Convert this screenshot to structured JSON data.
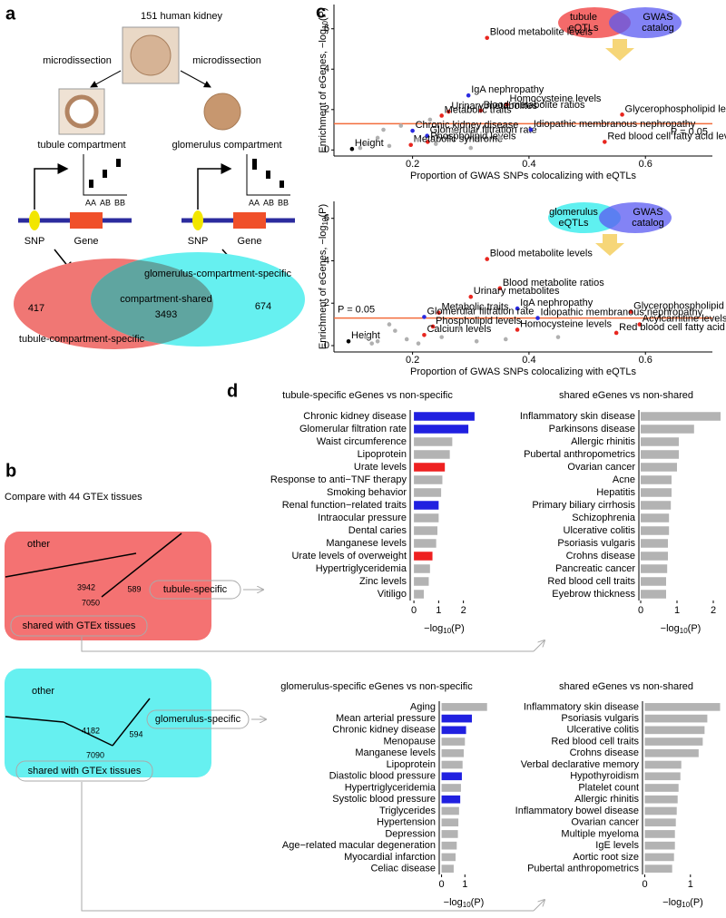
{
  "panel_labels": [
    "a",
    "b",
    "c",
    "d"
  ],
  "panel_a": {
    "source": "151 human kidney",
    "left_arrow": "microdissection",
    "right_arrow": "microdissection",
    "left_compartment": "tubule compartment",
    "right_compartment": "glomerulus compartment",
    "genotypes": [
      "AA",
      "AB",
      "BB"
    ],
    "snp": "SNP",
    "gene": "Gene",
    "venn": {
      "glomerulus_label": "glomerulus-compartment-specific",
      "shared_label": "compartment-shared",
      "shared": 3493,
      "tubule_only": 417,
      "glomerulus_only": 674,
      "tubule_label": "tubule-compartment-specific"
    }
  },
  "panel_b": {
    "title": "Compare with 44 GTEx tissues",
    "tubule": {
      "other_label": "other",
      "other": 3942,
      "specific": 589,
      "specific_label": "tubule-specific",
      "shared": 7050,
      "shared_label": "shared with GTEx tissues"
    },
    "glomerulus": {
      "other_label": "other",
      "other": 4182,
      "specific": 594,
      "specific_label": "glomerulus-specific",
      "shared": 7090,
      "shared_label": "shared with GTEx tissues"
    }
  },
  "chart_data": [
    {
      "type": "scatter",
      "xlabel": "Proportion of GWAS SNPs colocalizing with eQTLs",
      "ylabel": [
        "Enrichment of eGenes, −log",
        "10",
        "(P)"
      ],
      "xlim": [
        0.065,
        0.715
      ],
      "ylim": [
        -0.3,
        7.2
      ],
      "xticks": [
        0.2,
        0.4,
        0.6
      ],
      "yticks": [
        0,
        2,
        4,
        6
      ],
      "threshold": 1.3,
      "threshold_label": "P = 0.05",
      "threshold_color": "#f36c3b",
      "legend": {
        "left": [
          "tubule",
          "eQTLs"
        ],
        "right": [
          "GWAS",
          "catalog"
        ],
        "left_color": "#f46a6a",
        "right_color": "#5a5af2"
      },
      "points": [
        {
          "label": "Blood metabolite levels",
          "x": 0.328,
          "y": 5.55,
          "color": "#e8261f"
        },
        {
          "label": "IgA nephropathy",
          "x": 0.296,
          "y": 2.7,
          "color": "#2a2ae0"
        },
        {
          "label": "Homocysteine levels",
          "x": 0.362,
          "y": 2.25,
          "color": "#e8261f"
        },
        {
          "label": "Urinary metabolites",
          "x": 0.262,
          "y": 1.9,
          "color": "#e8261f"
        },
        {
          "label": "Blood metabolite ratios",
          "x": 0.317,
          "y": 1.95,
          "color": "#e8261f"
        },
        {
          "label": "Metabolic traits",
          "x": 0.25,
          "y": 1.7,
          "color": "#e8261f"
        },
        {
          "label": "Glycerophospholipid levels",
          "x": 0.56,
          "y": 1.75,
          "color": "#e8261f"
        },
        {
          "label": "Chronic kidney disease",
          "x": 0.2,
          "y": 0.95,
          "color": "#2a2ae0"
        },
        {
          "label": "Glomerular filtration rate",
          "x": 0.225,
          "y": 0.7,
          "color": "#2a2ae0"
        },
        {
          "label": "Idiopathic membranous nephropathy",
          "x": 0.403,
          "y": 1.0,
          "color": "#2a2ae0"
        },
        {
          "label": "Height",
          "x": 0.096,
          "y": 0.05,
          "color": "#000000"
        },
        {
          "label": "Phospholipid levels",
          "x": 0.226,
          "y": 0.4,
          "color": "#e8261f"
        },
        {
          "label": "Metabolic syndrome",
          "x": 0.197,
          "y": 0.25,
          "color": "#e8261f"
        },
        {
          "label": "Red blood cell fatty acid levels",
          "x": 0.53,
          "y": 0.4,
          "color": "#e8261f"
        },
        {
          "x": 0.12,
          "y": 0.3,
          "color": "#b0b0b0"
        },
        {
          "x": 0.14,
          "y": 0.6,
          "color": "#b0b0b0"
        },
        {
          "x": 0.16,
          "y": 0.2,
          "color": "#b0b0b0"
        },
        {
          "x": 0.18,
          "y": 1.2,
          "color": "#b0b0b0"
        },
        {
          "x": 0.15,
          "y": 1.0,
          "color": "#b0b0b0"
        },
        {
          "x": 0.21,
          "y": 0.5,
          "color": "#b0b0b0"
        },
        {
          "x": 0.24,
          "y": 0.3,
          "color": "#b0b0b0"
        },
        {
          "x": 0.27,
          "y": 0.9,
          "color": "#b0b0b0"
        },
        {
          "x": 0.3,
          "y": 0.1,
          "color": "#b0b0b0"
        },
        {
          "x": 0.23,
          "y": 1.5,
          "color": "#b0b0b0"
        },
        {
          "x": 0.11,
          "y": 0.1,
          "color": "#b0b0b0"
        },
        {
          "x": 0.35,
          "y": 0.6,
          "color": "#b0b0b0"
        }
      ]
    },
    {
      "type": "scatter",
      "xlabel": "Proportion of GWAS SNPs colocalizing with eQTLs",
      "ylabel": [
        "Enrichment of eGenes, −log",
        "10",
        "(P)"
      ],
      "xlim": [
        0.065,
        0.715
      ],
      "ylim": [
        -0.3,
        6.8
      ],
      "xticks": [
        0.2,
        0.4,
        0.6
      ],
      "yticks": [
        0,
        2,
        4,
        6
      ],
      "threshold": 1.3,
      "threshold_label": "P = 0.05",
      "threshold_color": "#f36c3b",
      "legend": {
        "left": [
          "glomerulus",
          "eQTLs"
        ],
        "right": [
          "GWAS",
          "catalog"
        ],
        "left_color": "#5ff0f0",
        "right_color": "#5a5af2"
      },
      "points": [
        {
          "label": "Blood metabolite levels",
          "x": 0.328,
          "y": 4.08,
          "color": "#e8261f"
        },
        {
          "label": "Blood metabolite ratios",
          "x": 0.35,
          "y": 2.7,
          "color": "#e8261f"
        },
        {
          "label": "Urinary metabolites",
          "x": 0.3,
          "y": 2.3,
          "color": "#e8261f"
        },
        {
          "label": "IgA nephropathy",
          "x": 0.38,
          "y": 1.75,
          "color": "#2a2ae0"
        },
        {
          "label": "Glycerophospholipid levels",
          "x": 0.575,
          "y": 1.6,
          "color": "#e8261f"
        },
        {
          "label": "Metabolic traits",
          "x": 0.245,
          "y": 1.55,
          "color": "#e8261f"
        },
        {
          "label": "Glomerular filtration rate",
          "x": 0.22,
          "y": 1.35,
          "color": "#2a2ae0"
        },
        {
          "label": "Idiopathic membranous nephropathy",
          "x": 0.415,
          "y": 1.3,
          "color": "#2a2ae0"
        },
        {
          "label": "Acylcarnitine levels",
          "x": 0.59,
          "y": 1.0,
          "color": "#e8261f"
        },
        {
          "label": "Phospholipid levels",
          "x": 0.235,
          "y": 0.9,
          "color": "#e8261f"
        },
        {
          "label": "Calcium levels",
          "x": 0.22,
          "y": 0.5,
          "color": "#e8261f"
        },
        {
          "label": "Homocysteine levels",
          "x": 0.38,
          "y": 0.75,
          "color": "#e8261f"
        },
        {
          "label": "Red blood cell fatty acid levels",
          "x": 0.55,
          "y": 0.6,
          "color": "#e8261f"
        },
        {
          "label": "Height",
          "x": 0.09,
          "y": 0.2,
          "color": "#000000"
        },
        {
          "x": 0.12,
          "y": 0.4,
          "color": "#b0b0b0"
        },
        {
          "x": 0.14,
          "y": 0.2,
          "color": "#b0b0b0"
        },
        {
          "x": 0.17,
          "y": 0.7,
          "color": "#b0b0b0"
        },
        {
          "x": 0.19,
          "y": 0.3,
          "color": "#b0b0b0"
        },
        {
          "x": 0.21,
          "y": 0.1,
          "color": "#b0b0b0"
        },
        {
          "x": 0.25,
          "y": 0.4,
          "color": "#b0b0b0"
        },
        {
          "x": 0.28,
          "y": 0.8,
          "color": "#b0b0b0"
        },
        {
          "x": 0.31,
          "y": 0.2,
          "color": "#b0b0b0"
        },
        {
          "x": 0.16,
          "y": 1.0,
          "color": "#b0b0b0"
        },
        {
          "x": 0.13,
          "y": 0.1,
          "color": "#b0b0b0"
        },
        {
          "x": 0.36,
          "y": 0.3,
          "color": "#b0b0b0"
        },
        {
          "x": 0.45,
          "y": 0.4,
          "color": "#b0b0b0"
        }
      ]
    },
    {
      "type": "barh",
      "title": "tubule-specific eGenes vs non-specific",
      "categories": [
        "Chronic kidney disease",
        "Glomerular filtration rate",
        "Waist circumference",
        "Lipoprotein",
        "Urate levels",
        "Response to anti−TNF therapy",
        "Smoking behavior",
        "Renal function−related traits",
        "Intraocular pressure",
        "Dental caries",
        "Manganese levels",
        "Urate levels of overweight",
        "Hypertriglyceridemia",
        "Zinc levels",
        "Vitiligo"
      ],
      "values": [
        2.45,
        2.2,
        1.55,
        1.45,
        1.25,
        1.15,
        1.1,
        1.0,
        1.0,
        0.95,
        0.9,
        0.75,
        0.65,
        0.6,
        0.4
      ],
      "colors": [
        "#2020e0",
        "#2020e0",
        "#b3b3b3",
        "#b3b3b3",
        "#ee2020",
        "#b3b3b3",
        "#b3b3b3",
        "#2020e0",
        "#b3b3b3",
        "#b3b3b3",
        "#b3b3b3",
        "#ee2020",
        "#b3b3b3",
        "#b3b3b3",
        "#b3b3b3"
      ],
      "xlim": [
        -0.15,
        2.6
      ],
      "xticks": [
        0,
        1,
        2
      ],
      "xlabel": [
        "−log",
        "10",
        "(P)"
      ]
    },
    {
      "type": "barh",
      "title": "shared eGenes vs non-shared",
      "categories": [
        "Inflammatory skin disease",
        "Parkinsons disease",
        "Allergic rhinitis",
        "Pubertal anthropometrics",
        "Ovarian cancer",
        "Acne",
        "Hepatitis",
        "Primary biliary cirrhosis",
        "Schizophrenia",
        "Ulcerative colitis",
        "Psoriasis vulgaris",
        "Crohns disease",
        "Pancreatic cancer",
        "Red blood cell traits",
        "Eyebrow thickness"
      ],
      "values": [
        2.2,
        1.47,
        1.05,
        1.05,
        1.0,
        0.85,
        0.85,
        0.83,
        0.78,
        0.78,
        0.75,
        0.75,
        0.73,
        0.7,
        0.7
      ],
      "colors": [
        "#b3b3b3",
        "#b3b3b3",
        "#b3b3b3",
        "#b3b3b3",
        "#b3b3b3",
        "#b3b3b3",
        "#b3b3b3",
        "#b3b3b3",
        "#b3b3b3",
        "#b3b3b3",
        "#b3b3b3",
        "#b3b3b3",
        "#b3b3b3",
        "#b3b3b3",
        "#b3b3b3"
      ],
      "xlim": [
        -0.05,
        2.25
      ],
      "xticks": [
        0,
        1,
        2
      ],
      "xlabel": [
        "−log",
        "10",
        "(P)"
      ]
    },
    {
      "type": "barh",
      "title": "glomerulus-specific eGenes vs non-specific",
      "categories": [
        "Aging",
        "Mean arterial pressure",
        "Chronic kidney disease",
        "Menopause",
        "Manganese levels",
        "Lipoprotein",
        "Diastolic blood pressure",
        "Hypertriglyceridemia",
        "Systolic blood pressure",
        "Triglycerides",
        "Hypertension",
        "Depression",
        "Age−related macular degeneration",
        "Myocardial infarction",
        "Celiac disease"
      ],
      "values": [
        1.95,
        1.3,
        1.05,
        1.0,
        0.95,
        0.9,
        0.87,
        0.83,
        0.8,
        0.75,
        0.72,
        0.7,
        0.65,
        0.6,
        0.52
      ],
      "colors": [
        "#b3b3b3",
        "#2020e0",
        "#2020e0",
        "#b3b3b3",
        "#b3b3b3",
        "#b3b3b3",
        "#2020e0",
        "#b3b3b3",
        "#2020e0",
        "#b3b3b3",
        "#b3b3b3",
        "#b3b3b3",
        "#b3b3b3",
        "#b3b3b3",
        "#b3b3b3"
      ],
      "xlim": [
        -0.1,
        2.0
      ],
      "xticks": [
        0,
        1
      ],
      "xlabel": [
        "−log",
        "10",
        "(P)"
      ]
    },
    {
      "type": "barh",
      "title": "shared eGenes vs non-shared",
      "categories": [
        "Inflammatory skin disease",
        "Psoriasis vulgaris",
        "Ulcerative colitis",
        "Red blood cell traits",
        "Crohns disease",
        "Verbal declarative memory",
        "Hypothyroidism",
        "Platelet count",
        "Allergic rhinitis",
        "Inflammatory bowel disease",
        "Ovarian cancer",
        "Multiple myeloma",
        "IgE levels",
        "Aortic root size",
        "Pubertal anthropometrics"
      ],
      "values": [
        1.65,
        1.37,
        1.31,
        1.27,
        1.18,
        0.8,
        0.78,
        0.74,
        0.72,
        0.7,
        0.68,
        0.66,
        0.66,
        0.64,
        0.6
      ],
      "colors": [
        "#b3b3b3",
        "#b3b3b3",
        "#b3b3b3",
        "#b3b3b3",
        "#b3b3b3",
        "#b3b3b3",
        "#b3b3b3",
        "#b3b3b3",
        "#b3b3b3",
        "#b3b3b3",
        "#b3b3b3",
        "#b3b3b3",
        "#b3b3b3",
        "#b3b3b3",
        "#b3b3b3"
      ],
      "xlim": [
        -0.05,
        1.72
      ],
      "xticks": [
        0,
        1
      ],
      "xlabel": [
        "−log",
        "10",
        "(P)"
      ]
    }
  ]
}
